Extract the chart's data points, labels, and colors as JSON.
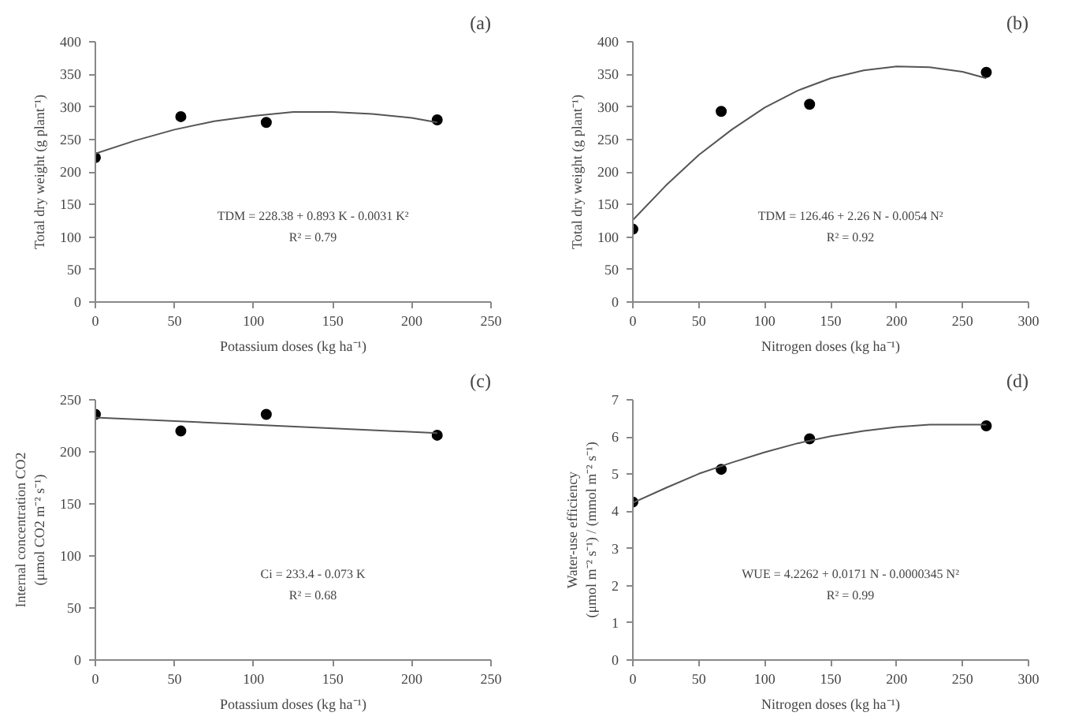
{
  "chart_data": [
    {
      "type": "scatter",
      "xlabel": "Potassium doses (kg ha⁻¹)",
      "ylabel": "Total dry weight (g plant⁻¹)",
      "xlim": [
        0,
        250
      ],
      "xticks": [
        0,
        50,
        100,
        150,
        200,
        250
      ],
      "ylim": [
        0,
        400
      ],
      "yticks": [
        0,
        50,
        100,
        150,
        200,
        250,
        300,
        350,
        400
      ],
      "annotations": [
        "(a)",
        "TDM = 228.38 + 0.893 K - 0.0031 K²",
        "R² = 0.79"
      ],
      "series": [
        {
          "marker": "circle",
          "color": "#000000",
          "x": [
            0,
            54,
            108,
            216
          ],
          "values": [
            222,
            285,
            276,
            280
          ]
        },
        {
          "type": "line",
          "color": "#555555",
          "x": [
            0,
            25,
            50,
            75,
            100,
            125,
            150,
            175,
            200,
            216
          ],
          "values": [
            228,
            248,
            265,
            278,
            286,
            292,
            292,
            289,
            283,
            276
          ]
        }
      ]
    },
    {
      "type": "scatter",
      "xlabel": "Nitrogen doses (kg ha⁻¹)",
      "ylabel": "Total dry weight (g plant⁻¹)",
      "xlim": [
        0,
        300
      ],
      "xticks": [
        0,
        50,
        100,
        150,
        200,
        250,
        300
      ],
      "ylim": [
        0,
        400
      ],
      "yticks": [
        0,
        50,
        100,
        150,
        200,
        250,
        300,
        350,
        400
      ],
      "annotations": [
        "(b)",
        "TDM = 126.46 + 2.26 N - 0.0054 N²",
        "R² = 0.92"
      ],
      "series": [
        {
          "marker": "circle",
          "color": "#000000",
          "x": [
            0,
            67,
            134,
            268
          ],
          "values": [
            112,
            293,
            304,
            353
          ]
        },
        {
          "type": "line",
          "color": "#555555",
          "x": [
            0,
            25,
            50,
            75,
            100,
            125,
            150,
            175,
            200,
            225,
            250,
            268
          ],
          "values": [
            126,
            179,
            226,
            265,
            299,
            325,
            344,
            356,
            362,
            361,
            354,
            344
          ]
        }
      ]
    },
    {
      "type": "scatter",
      "xlabel": "Potassium doses (kg ha⁻¹)",
      "ylabel": "Internal concentration CO2\n(μmol CO2 m⁻² s⁻¹)",
      "xlim": [
        0,
        250
      ],
      "xticks": [
        0,
        50,
        100,
        150,
        200,
        250
      ],
      "ylim": [
        0,
        250
      ],
      "yticks": [
        0,
        50,
        100,
        150,
        200,
        250
      ],
      "annotations": [
        "(c)",
        "Ci = 233.4 - 0.073 K",
        "R² = 0.68"
      ],
      "series": [
        {
          "marker": "circle",
          "color": "#000000",
          "x": [
            0,
            54,
            108,
            216
          ],
          "values": [
            236,
            220,
            236,
            216
          ]
        },
        {
          "type": "line",
          "color": "#555555",
          "x": [
            0,
            216
          ],
          "values": [
            233,
            218
          ]
        }
      ]
    },
    {
      "type": "scatter",
      "xlabel": "Nitrogen doses (kg ha⁻¹)",
      "ylabel": "Water-use efficiency\n(μmol m⁻² s⁻¹) / (mmol m⁻² s⁻¹)",
      "xlim": [
        0,
        300
      ],
      "xticks": [
        0,
        50,
        100,
        150,
        200,
        250,
        300
      ],
      "ylim": [
        0,
        7
      ],
      "yticks": [
        0,
        1,
        2,
        3,
        4,
        5,
        6,
        7
      ],
      "annotations": [
        "(d)",
        "WUE = 4.2262 + 0.0171 N - 0.0000345 N²",
        "R² = 0.99"
      ],
      "series": [
        {
          "marker": "circle",
          "color": "#000000",
          "x": [
            0,
            67,
            134,
            268
          ],
          "values": [
            4.25,
            5.13,
            5.95,
            6.3
          ]
        },
        {
          "type": "line",
          "color": "#555555",
          "x": [
            0,
            25,
            50,
            75,
            100,
            125,
            150,
            175,
            200,
            225,
            250,
            268
          ],
          "values": [
            4.23,
            4.63,
            5.01,
            5.31,
            5.59,
            5.83,
            6.02,
            6.16,
            6.27,
            6.33,
            6.33,
            6.33
          ]
        }
      ]
    }
  ]
}
